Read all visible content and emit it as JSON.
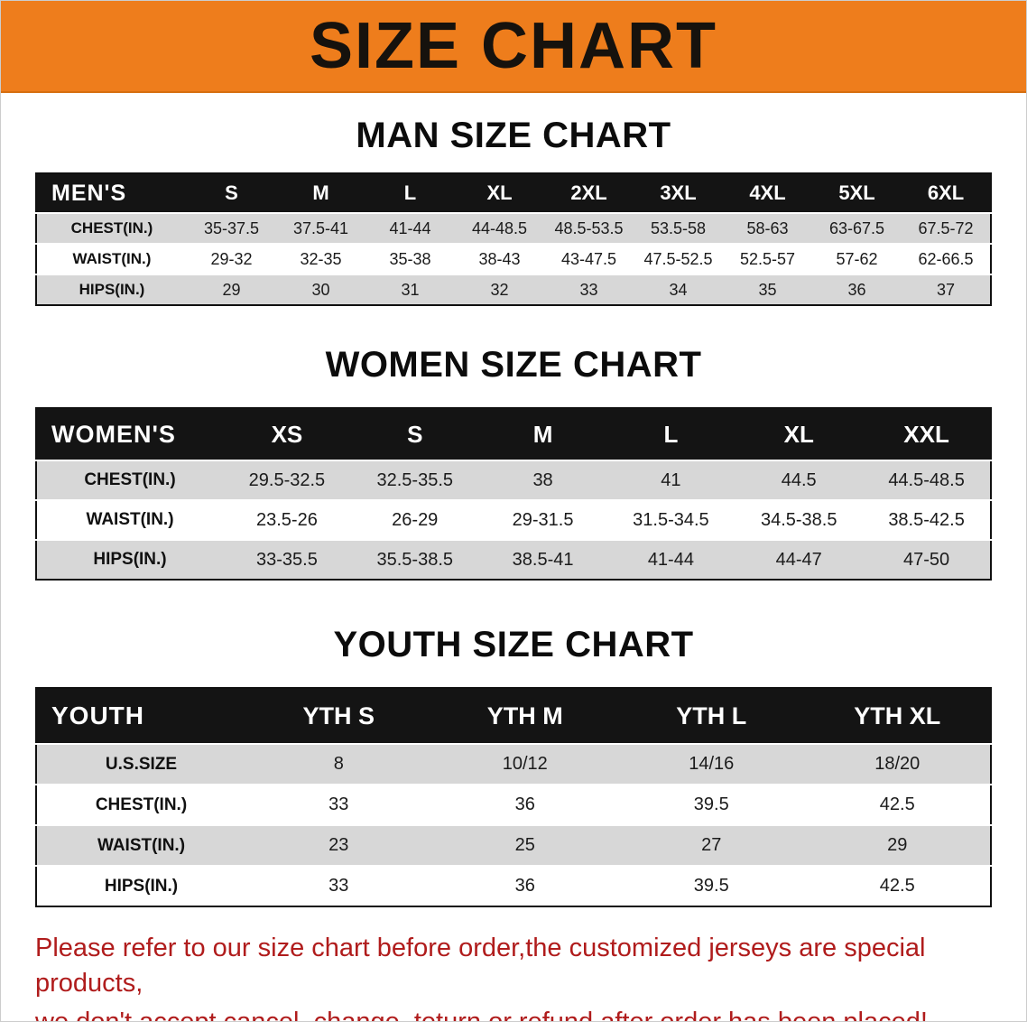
{
  "title": "SIZE CHART",
  "colors": {
    "banner": "#ee7d1c",
    "table_header_bg": "#141414",
    "row_alt": "#d7d7d7",
    "footer_text": "#b01c1c"
  },
  "tables": [
    {
      "id": "men",
      "heading": "MAN SIZE CHART",
      "label": "MEN'S",
      "columns": [
        "S",
        "M",
        "L",
        "XL",
        "2XL",
        "3XL",
        "4XL",
        "5XL",
        "6XL"
      ],
      "rows": [
        {
          "label": "CHEST(IN.)",
          "values": [
            "35-37.5",
            "37.5-41",
            "41-44",
            "44-48.5",
            "48.5-53.5",
            "53.5-58",
            "58-63",
            "63-67.5",
            "67.5-72"
          ]
        },
        {
          "label": "WAIST(IN.)",
          "values": [
            "29-32",
            "32-35",
            "35-38",
            "38-43",
            "43-47.5",
            "47.5-52.5",
            "52.5-57",
            "57-62",
            "62-66.5"
          ]
        },
        {
          "label": "HIPS(IN.)",
          "values": [
            "29",
            "30",
            "31",
            "32",
            "33",
            "34",
            "35",
            "36",
            "37"
          ]
        }
      ]
    },
    {
      "id": "women",
      "heading": "WOMEN SIZE CHART",
      "label": "WOMEN'S",
      "columns": [
        "XS",
        "S",
        "M",
        "L",
        "XL",
        "XXL"
      ],
      "rows": [
        {
          "label": "CHEST(IN.)",
          "values": [
            "29.5-32.5",
            "32.5-35.5",
            "38",
            "41",
            "44.5",
            "44.5-48.5"
          ]
        },
        {
          "label": "WAIST(IN.)",
          "values": [
            "23.5-26",
            "26-29",
            "29-31.5",
            "31.5-34.5",
            "34.5-38.5",
            "38.5-42.5"
          ]
        },
        {
          "label": "HIPS(IN.)",
          "values": [
            "33-35.5",
            "35.5-38.5",
            "38.5-41",
            "41-44",
            "44-47",
            "47-50"
          ]
        }
      ]
    },
    {
      "id": "youth",
      "heading": "YOUTH SIZE CHART",
      "label": "YOUTH",
      "columns": [
        "YTH S",
        "YTH M",
        "YTH L",
        "YTH XL"
      ],
      "rows": [
        {
          "label": "U.S.SIZE",
          "values": [
            "8",
            "10/12",
            "14/16",
            "18/20"
          ]
        },
        {
          "label": "CHEST(IN.)",
          "values": [
            "33",
            "36",
            "39.5",
            "42.5"
          ]
        },
        {
          "label": "WAIST(IN.)",
          "values": [
            "23",
            "25",
            "27",
            "29"
          ]
        },
        {
          "label": "HIPS(IN.)",
          "values": [
            "33",
            "36",
            "39.5",
            "42.5"
          ]
        }
      ]
    }
  ],
  "footer": {
    "line1": "Please refer to our size chart before order,the customized jerseys are special products,",
    "line2": "we don't accept cancel, change, teturn or refund after order has been placed!"
  }
}
